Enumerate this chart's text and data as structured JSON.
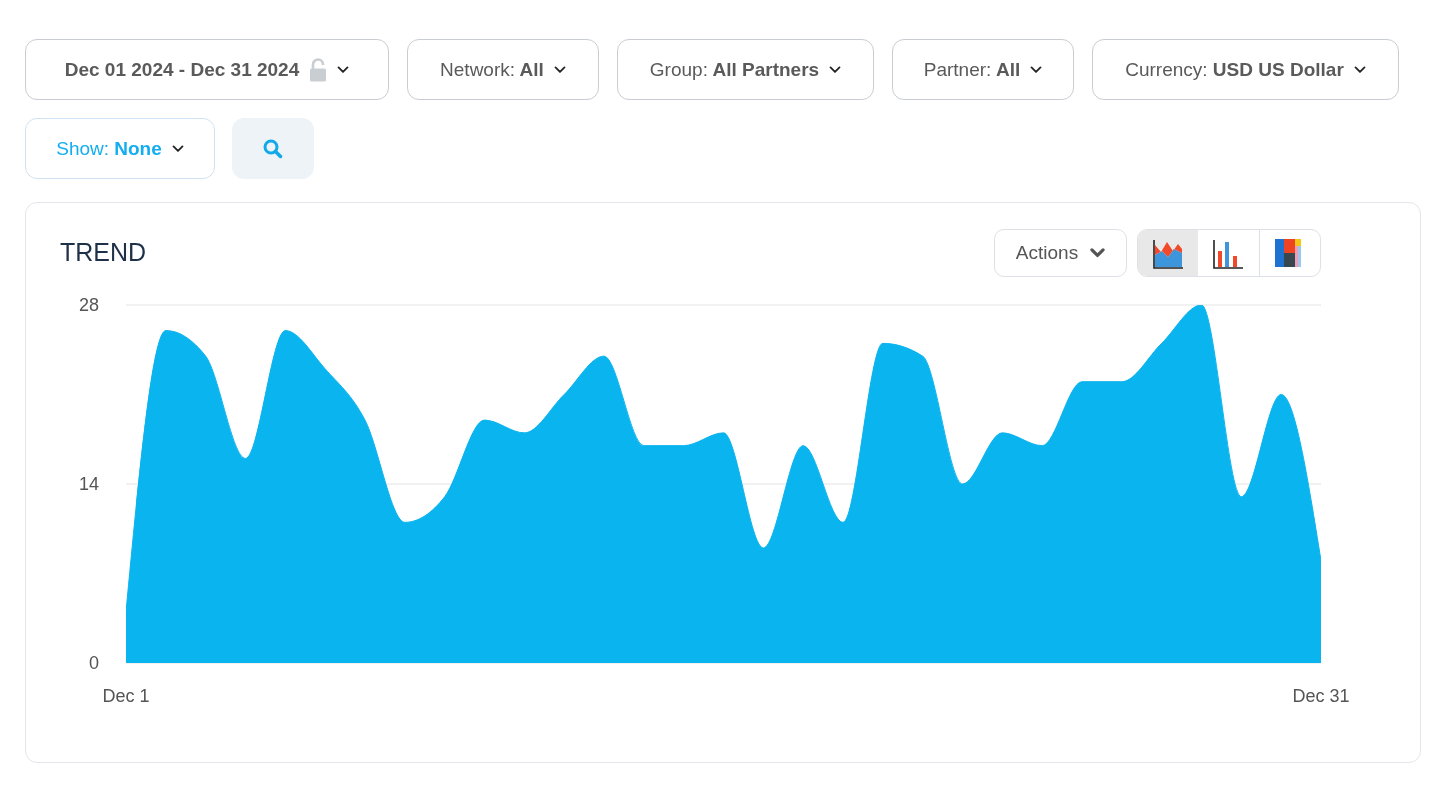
{
  "chart_data": {
    "type": "area",
    "title": "TREND",
    "x": [
      "2024-12-01",
      "2024-12-02",
      "2024-12-03",
      "2024-12-04",
      "2024-12-05",
      "2024-12-06",
      "2024-12-07",
      "2024-12-08",
      "2024-12-09",
      "2024-12-10",
      "2024-12-11",
      "2024-12-12",
      "2024-12-13",
      "2024-12-14",
      "2024-12-15",
      "2024-12-16",
      "2024-12-17",
      "2024-12-18",
      "2024-12-19",
      "2024-12-20",
      "2024-12-21",
      "2024-12-22",
      "2024-12-23",
      "2024-12-24",
      "2024-12-25",
      "2024-12-26",
      "2024-12-27",
      "2024-12-28",
      "2024-12-29",
      "2024-12-30",
      "2024-12-31"
    ],
    "values": [
      4,
      26,
      24,
      16,
      26,
      23,
      19,
      11,
      13,
      19,
      18,
      21,
      24,
      17,
      17,
      18,
      9,
      17,
      11,
      25,
      24,
      14,
      18,
      17,
      22,
      22,
      25,
      28,
      13,
      21,
      8
    ],
    "color": "#0ab4ee",
    "xlim": [
      "2024-12-01",
      "2024-12-31"
    ],
    "xticks": [
      {
        "value": "2024-12-01",
        "label": "Dec 1"
      },
      {
        "value": "2024-12-31",
        "label": "Dec 31"
      }
    ],
    "ylim": [
      0,
      28
    ],
    "yticks": [
      0,
      14,
      28
    ],
    "grid": "y",
    "annotations": [
      "Dec 01 2024 - Dec 31 2024",
      "Network: All",
      "Group: All Partners",
      "Partner: All",
      "Currency: USD US Dollar",
      "Show: None",
      "Actions"
    ]
  }
}
